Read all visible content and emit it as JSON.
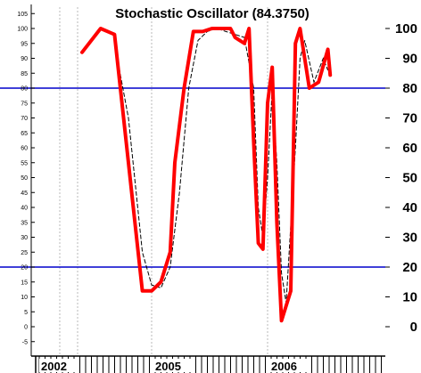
{
  "chart_data": {
    "type": "line",
    "title": "Stochastic Oscillator (84.3750)",
    "ylim": [
      -5,
      105
    ],
    "y_ticks_left": [
      -5,
      0,
      5,
      10,
      15,
      20,
      25,
      30,
      35,
      40,
      45,
      50,
      55,
      60,
      65,
      70,
      75,
      80,
      85,
      90,
      95,
      100,
      105
    ],
    "y_ticks_right": [
      0,
      10,
      20,
      30,
      40,
      50,
      60,
      70,
      80,
      90,
      100
    ],
    "x_tick_labels": [
      "2002",
      "2005",
      "2006"
    ],
    "reference_lines": [
      80,
      20
    ],
    "grid": "vertical dotted",
    "colors": {
      "k_line": "#ff0000",
      "d_line": "#000000",
      "reference": "#0000cc"
    },
    "series": [
      {
        "style": "thick-red",
        "x": [
          0,
          4,
          7,
          10,
          13,
          15,
          17,
          19,
          20,
          22,
          24,
          26,
          28,
          30,
          32,
          33,
          34,
          35,
          36,
          37,
          38,
          39,
          40,
          41,
          42,
          43,
          45,
          46,
          47,
          49,
          51,
          53
        ],
        "y": [
          92,
          100,
          98,
          55,
          12,
          12,
          15,
          25,
          55,
          80,
          99,
          99,
          100,
          100,
          100,
          97,
          96,
          95,
          100,
          62,
          28,
          26,
          75,
          87,
          35,
          2,
          12,
          95,
          100,
          80,
          82,
          93
        ]
      },
      {
        "style": "thin-black-dashed",
        "x": [
          7,
          10,
          13,
          15,
          17,
          19,
          21,
          23,
          25,
          27,
          29,
          31,
          33,
          35,
          37,
          38,
          39,
          40,
          41,
          42,
          43,
          44,
          46,
          47,
          48,
          50,
          52,
          53
        ],
        "y": [
          95,
          70,
          25,
          14,
          13,
          20,
          45,
          80,
          96,
          99,
          100,
          99,
          98,
          97,
          80,
          40,
          30,
          50,
          80,
          55,
          18,
          8,
          60,
          90,
          96,
          82,
          90,
          86
        ]
      }
    ],
    "final_point": {
      "x": 53.5,
      "y": 84.375
    }
  }
}
